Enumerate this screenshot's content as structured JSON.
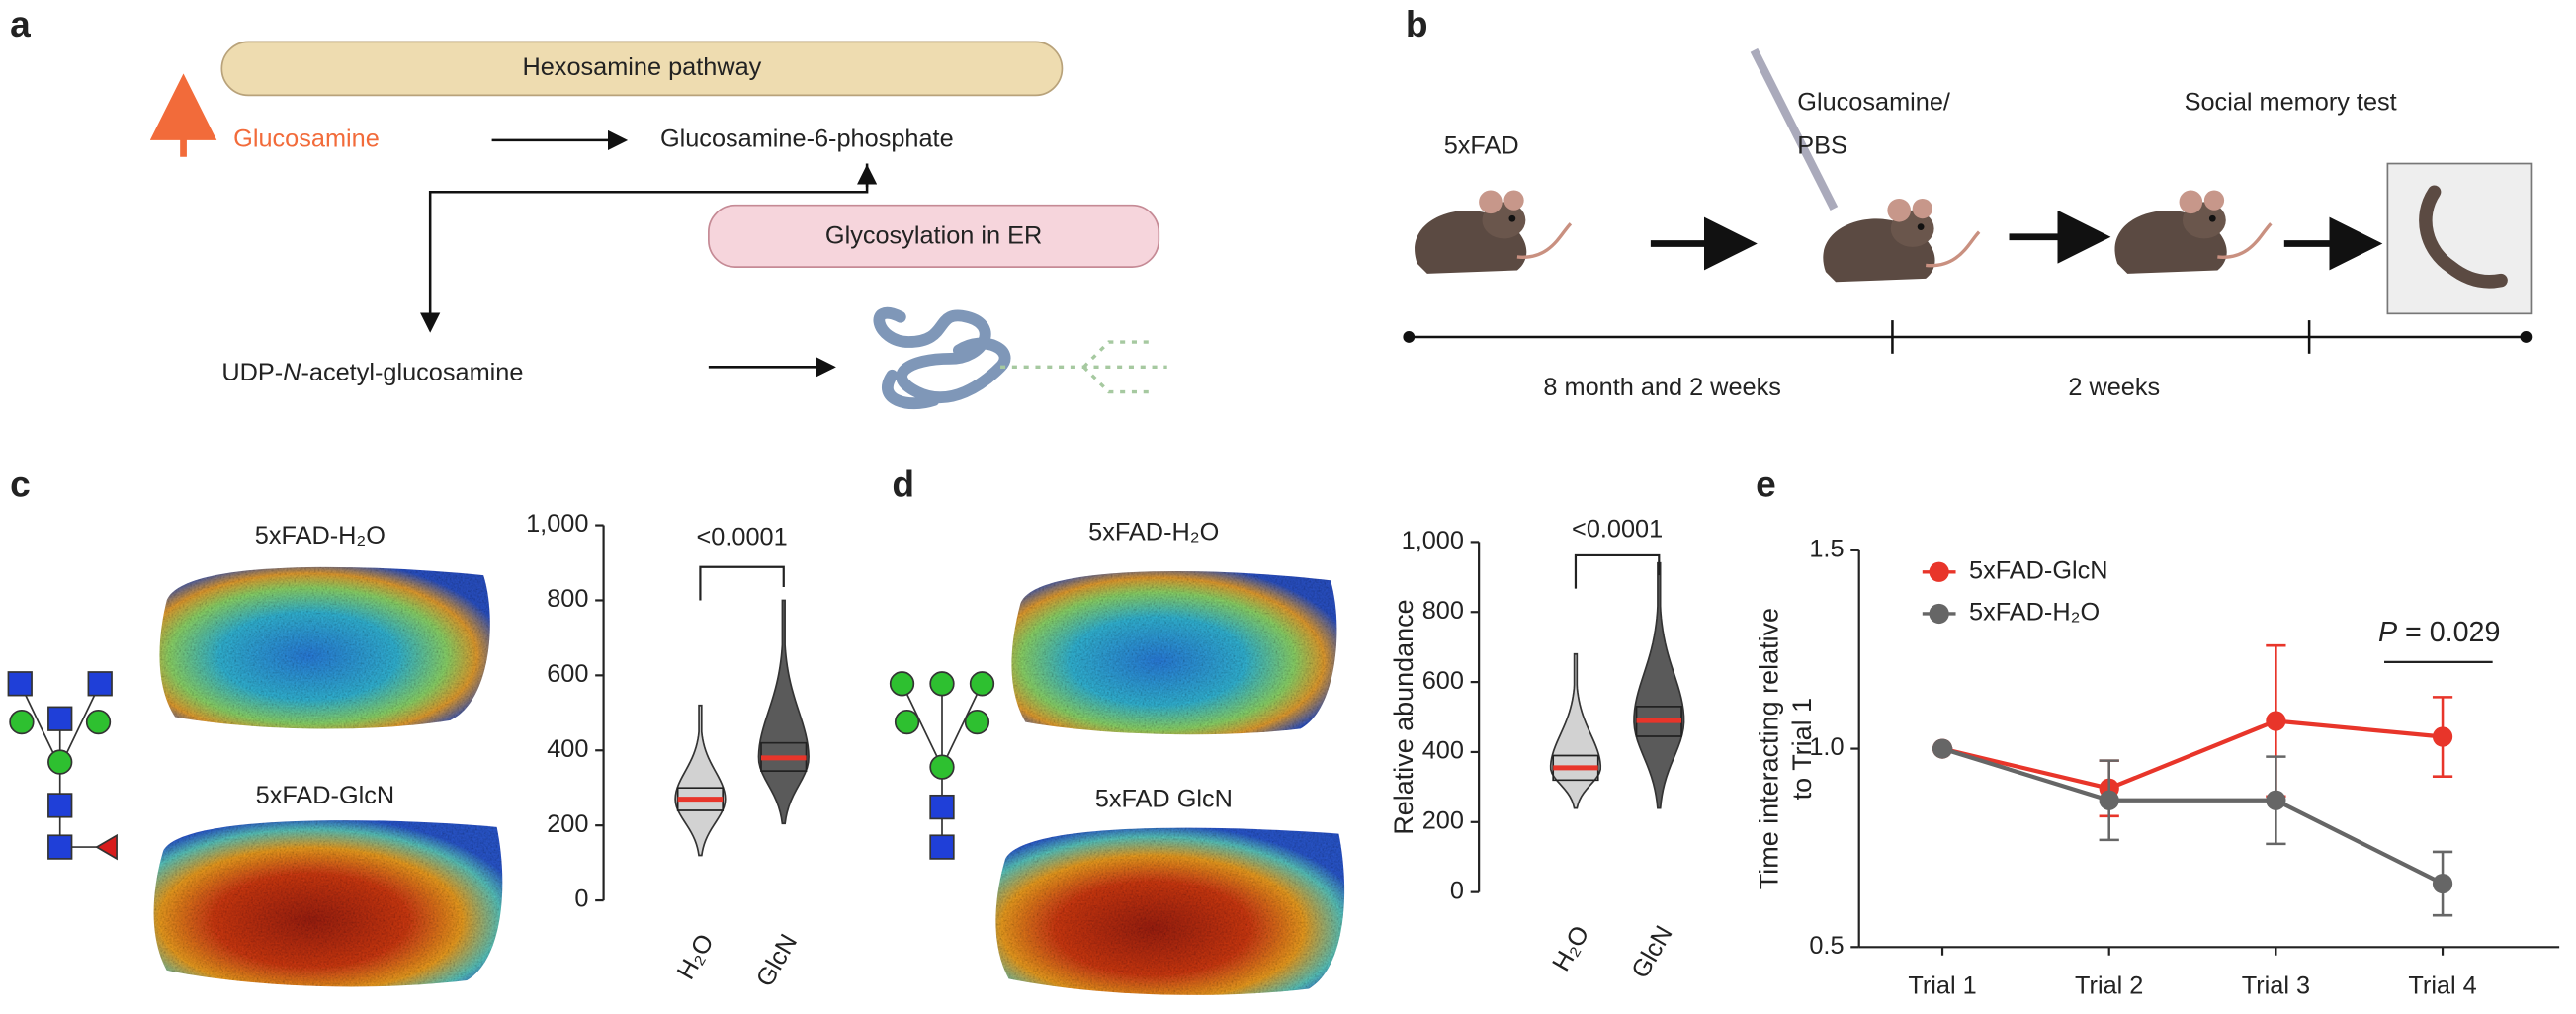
{
  "panels": {
    "a": {
      "label": "a",
      "pathway": "Hexosamine pathway",
      "glucosamine": "Glucosamine",
      "product": "Glucosamine-6-phosphate",
      "glycosylation": "Glycosylation in ER",
      "udp_prefix": "UDP-",
      "udp_italic": "N",
      "udp_suffix": "-acetyl-glucosamine"
    },
    "b": {
      "label": "b",
      "strain": "5xFAD",
      "treatment_line1": "Glucosamine/",
      "treatment_line2": "PBS",
      "test": "Social memory test",
      "period1": "8 month and 2 weeks",
      "period2": "2 weeks"
    },
    "c": {
      "label": "c",
      "image_titles": [
        "5xFAD-H₂O",
        "5xFAD-GlcN"
      ]
    },
    "d": {
      "label": "d",
      "image_titles": [
        "5xFAD-H₂O",
        "5xFAD GlcN"
      ]
    },
    "e": {
      "label": "e"
    }
  },
  "chart_data": [
    {
      "type": "violin",
      "categories": [
        "H₂O",
        "GlcN"
      ],
      "colors": [
        "#d2d2d2",
        "#5a5a5a"
      ],
      "median_color": "#e8352a",
      "min": [
        120,
        205
      ],
      "q1": [
        240,
        345
      ],
      "median": [
        270,
        380
      ],
      "q3": [
        300,
        420
      ],
      "max": [
        520,
        800
      ],
      "ylim": [
        0,
        1000
      ],
      "yticks": [
        0,
        200,
        400,
        600,
        800,
        {
          "value": 1000,
          "label": "1,000"
        }
      ],
      "annotation": "<0.0001"
    },
    {
      "type": "violin",
      "ylabel": "Relative abundance",
      "categories": [
        "H₂O",
        "GlcN"
      ],
      "colors": [
        "#d2d2d2",
        "#5a5a5a"
      ],
      "median_color": "#e8352a",
      "min": [
        240,
        240
      ],
      "q1": [
        320,
        445
      ],
      "median": [
        355,
        490
      ],
      "q3": [
        390,
        530
      ],
      "max": [
        680,
        940
      ],
      "ylim": [
        0,
        1000
      ],
      "yticks": [
        0,
        200,
        400,
        600,
        800,
        {
          "value": 1000,
          "label": "1,000"
        }
      ],
      "annotation": "<0.0001"
    },
    {
      "type": "line",
      "ylabel": [
        "Time interacting relative",
        "to Trial 1"
      ],
      "categories": [
        "Trial 1",
        "Trial 2",
        "Trial 3",
        "Trial 4"
      ],
      "series": [
        {
          "name": "5xFAD-GlcN",
          "color": "#e8352a",
          "values": [
            1.0,
            0.9,
            1.07,
            1.03
          ],
          "errors": [
            0,
            0.07,
            0.19,
            0.1
          ]
        },
        {
          "name": "5xFAD-H₂O",
          "color": "#666666",
          "values": [
            1.0,
            0.87,
            0.87,
            0.66
          ],
          "errors": [
            0,
            0.1,
            0.11,
            0.08
          ]
        }
      ],
      "ylim": [
        0.5,
        1.5
      ],
      "yticks": [
        0.5,
        {
          "value": 1,
          "label": "1.0"
        },
        1.5
      ],
      "legend": "top-left",
      "annotation": [
        "P",
        " = 0.029"
      ]
    }
  ]
}
